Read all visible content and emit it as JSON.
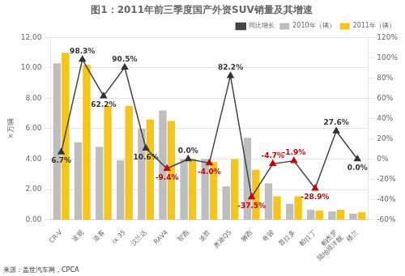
{
  "chart_data": {
    "type": "bar",
    "title": "图1：2011年前三季度国产外资SUV销量及其增速",
    "source": "来源：盖世汽车网，CPCA",
    "ylabel": "×万辆",
    "categories": [
      "CR-V",
      "途观",
      "道客",
      "ix 35",
      "汉兰达",
      "RAV4",
      "智跑",
      "途胜",
      "奥迪Q5",
      "狮跑",
      "奇骏",
      "普拉多",
      "帕拉丁",
      "帕杰罗\n陆地巡洋舰",
      "楼兰"
    ],
    "series": [
      {
        "name": "2010年（辆）",
        "color": "#bebebe",
        "values": [
          10.3,
          5.1,
          4.8,
          3.9,
          6.0,
          7.2,
          4.0,
          4.0,
          2.2,
          5.4,
          2.4,
          1.05,
          0.65,
          0.55,
          0.4
        ]
      },
      {
        "name": "2011年（辆）",
        "color": "#f5c518",
        "values": [
          11.0,
          10.2,
          7.5,
          7.5,
          6.6,
          6.5,
          4.0,
          3.8,
          4.0,
          3.3,
          1.55,
          1.55,
          0.6,
          0.65,
          0.5
        ]
      },
      {
        "name": "同比增长",
        "type": "line",
        "axis": "y2",
        "color": "#444444",
        "marker": "triangle",
        "colors": [
          "#333333",
          "#333333",
          "#333333",
          "#333333",
          "#333333",
          "#cc0000",
          "#333333",
          "#cc0000",
          "#333333",
          "#cc0000",
          "#cc0000",
          "#cc0000",
          "#cc0000",
          "#333333",
          "#333333"
        ],
        "data_labels": true,
        "values": [
          6.7,
          98.3,
          62.2,
          90.5,
          10.6,
          -9.4,
          0.0,
          -4.0,
          82.2,
          -37.5,
          -4.7,
          -1.9,
          -28.9,
          27.6,
          0.0
        ],
        "value_labels": [
          "6.7%",
          "98.3%",
          "62.2%",
          "90.5%",
          "10.6%",
          "-9.4%",
          "0.0%",
          "-4.0%",
          "82.2%",
          "-37.5%",
          "-4.7%",
          "-1.9%",
          "-28.9%",
          "27.6%",
          "0.0%"
        ]
      }
    ],
    "ylim": [
      0,
      12
    ],
    "yticks": [
      {
        "value": 0,
        "label": "0.00"
      },
      {
        "value": 2,
        "label": "2.00"
      },
      {
        "value": 4,
        "label": "4.00"
      },
      {
        "value": 6,
        "label": "6.00"
      },
      {
        "value": 8,
        "label": "8.00"
      },
      {
        "value": 10,
        "label": "10.00"
      },
      {
        "value": 12,
        "label": "12.00"
      }
    ],
    "y2lim": [
      -60,
      120
    ],
    "y2ticks": [
      {
        "value": -60,
        "label": "-60%"
      },
      {
        "value": -40,
        "label": "-40%"
      },
      {
        "value": -20,
        "label": "-20%"
      },
      {
        "value": 0,
        "label": "0%"
      },
      {
        "value": 20,
        "label": "20%"
      },
      {
        "value": 40,
        "label": "40%"
      },
      {
        "value": 60,
        "label": "60%"
      },
      {
        "value": 80,
        "label": "80%"
      },
      {
        "value": 100,
        "label": "100%"
      },
      {
        "value": 120,
        "label": "120%"
      }
    ],
    "grid": "y",
    "legend": "upper right"
  }
}
